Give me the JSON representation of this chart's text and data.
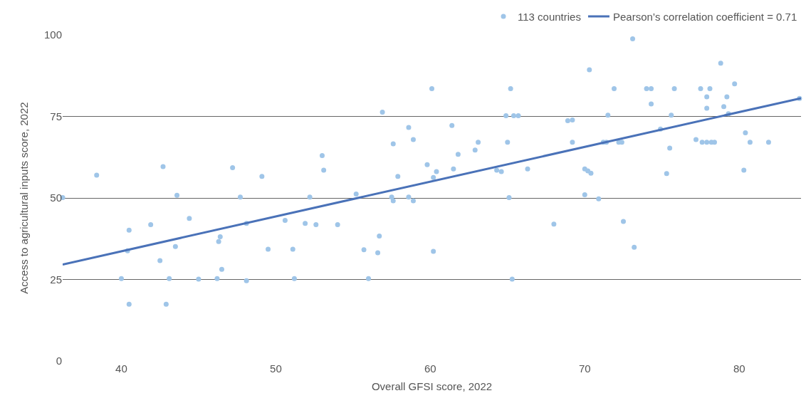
{
  "chart_data": {
    "type": "scatter",
    "xlabel": "Overall GFSI score, 2022",
    "ylabel": "Access to agricultural inputs score, 2022",
    "xlim": [
      36.2,
      84
    ],
    "xticks": [
      40,
      50,
      60,
      70,
      80
    ],
    "ylim": [
      0,
      100
    ],
    "yticks": [
      0,
      25,
      50,
      75,
      100
    ],
    "grid": "y",
    "legend": "top right",
    "marker": "circle",
    "series": [
      {
        "name": "113 countries",
        "color": "#9fc5e8",
        "x": [
          36.2,
          38.4,
          40.0,
          40.5,
          40.4,
          40.5,
          41.9,
          42.5,
          42.7,
          42.9,
          43.1,
          43.5,
          43.6,
          44.4,
          45.0,
          46.2,
          46.3,
          46.4,
          46.5,
          47.2,
          47.7,
          48.1,
          48.1,
          49.1,
          49.5,
          50.6,
          51.1,
          51.2,
          51.9,
          52.2,
          52.6,
          53.0,
          53.1,
          54.0,
          55.2,
          55.7,
          56.0,
          56.6,
          56.7,
          56.9,
          57.5,
          57.6,
          57.6,
          57.9,
          58.6,
          58.6,
          58.9,
          58.9,
          59.8,
          60.1,
          60.2,
          60.2,
          60.4,
          61.4,
          61.5,
          61.8,
          62.9,
          63.1,
          64.3,
          64.6,
          64.9,
          65.0,
          65.1,
          65.2,
          65.3,
          65.4,
          65.7,
          66.3,
          68.0,
          68.9,
          69.2,
          69.2,
          70.0,
          70.0,
          70.2,
          70.3,
          70.4,
          70.9,
          71.2,
          71.4,
          71.5,
          71.9,
          72.2,
          72.4,
          72.5,
          73.1,
          73.2,
          74.0,
          74.3,
          74.3,
          74.9,
          75.3,
          75.5,
          75.6,
          75.8,
          77.2,
          77.5,
          77.6,
          77.9,
          77.9,
          77.9,
          78.1,
          78.2,
          78.4,
          78.8,
          79.0,
          79.2,
          79.3,
          79.7,
          80.3,
          80.4,
          80.7,
          81.9,
          83.9
        ],
        "values": [
          50.1,
          57.0,
          25.3,
          40.1,
          33.8,
          17.4,
          41.8,
          30.8,
          59.6,
          17.4,
          25.3,
          35.1,
          50.8,
          43.7,
          25.1,
          25.3,
          36.6,
          38.1,
          28.1,
          59.3,
          50.3,
          42.2,
          24.6,
          56.6,
          34.3,
          43.1,
          34.3,
          25.3,
          42.2,
          50.3,
          41.8,
          63.0,
          58.5,
          41.8,
          51.2,
          34.1,
          25.3,
          33.2,
          38.3,
          76.3,
          50.3,
          49.1,
          66.6,
          56.6,
          71.6,
          50.3,
          67.9,
          49.1,
          60.2,
          83.5,
          56.3,
          33.6,
          58.1,
          72.2,
          58.9,
          63.4,
          64.7,
          67.1,
          58.5,
          58.1,
          75.2,
          67.1,
          50.1,
          83.5,
          25.1,
          75.2,
          75.2,
          58.9,
          42.0,
          73.7,
          73.9,
          67.1,
          51.0,
          58.9,
          58.3,
          89.3,
          57.6,
          49.7,
          67.1,
          67.1,
          75.4,
          83.5,
          67.1,
          67.1,
          42.8,
          98.8,
          34.9,
          83.5,
          83.5,
          78.8,
          71.1,
          57.5,
          65.3,
          75.4,
          83.5,
          67.9,
          83.5,
          67.1,
          67.1,
          81.0,
          77.5,
          83.5,
          67.1,
          67.1,
          91.3,
          78.0,
          81.0,
          75.8,
          85.0,
          58.5,
          70.0,
          67.1,
          67.1,
          80.5
        ]
      },
      {
        "name": "Pearson’s correlation coefficient = 0.71",
        "type": "line",
        "color": "#4a72b8",
        "marker": "none",
        "x": [
          36.2,
          84
        ],
        "values": [
          29.6,
          80.6
        ]
      }
    ]
  }
}
